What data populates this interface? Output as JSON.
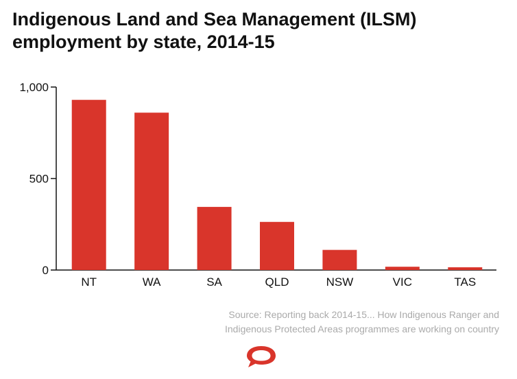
{
  "title": "Indigenous Land and Sea Management (ILSM) employment by state, 2014-15",
  "source": "Source: Reporting back 2014-15... How Indigenous Ranger and Indigenous Protected Areas programmes are working on country",
  "logo_icon": "conversation-speech-bubble-icon",
  "colors": {
    "bar": "#d9352b",
    "axis": "#111111",
    "source": "#aaaaaa",
    "logo": "#d9352b"
  },
  "chart_data": {
    "type": "bar",
    "title": "Indigenous Land and Sea Management (ILSM) employment by state, 2014-15",
    "xlabel": "",
    "ylabel": "",
    "categories": [
      "NT",
      "WA",
      "SA",
      "QLD",
      "NSW",
      "VIC",
      "TAS"
    ],
    "values": [
      930,
      860,
      345,
      263,
      110,
      18,
      15
    ],
    "ylim": [
      0,
      1000
    ],
    "yticks": [
      0,
      500,
      1000
    ],
    "ytick_labels": [
      "0",
      "500",
      "1,000"
    ],
    "grid": false,
    "legend": "none"
  }
}
